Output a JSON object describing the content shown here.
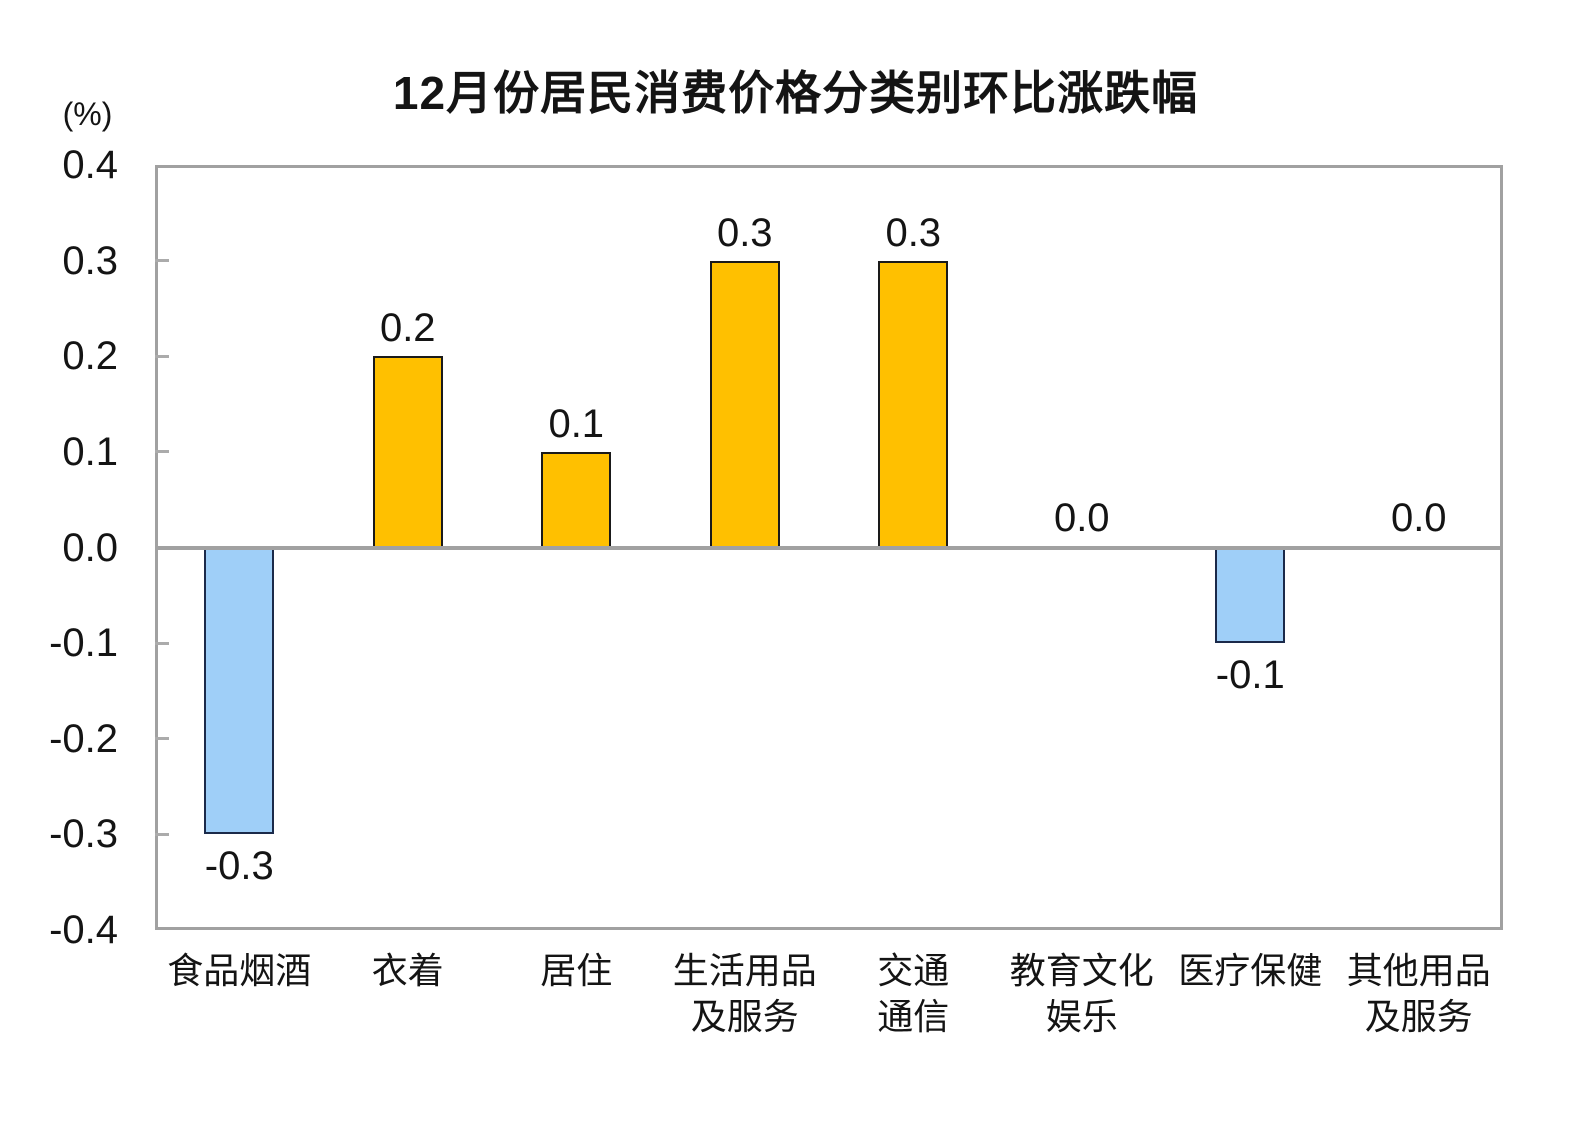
{
  "chart_data": {
    "type": "bar",
    "title": "12月份居民消费价格分类别环比涨跌幅",
    "ylabel_unit": "(%)",
    "categories": [
      "食品烟酒",
      "衣着",
      "居住",
      "生活用品\n及服务",
      "交通\n通信",
      "教育文化\n娱乐",
      "医疗保健",
      "其他用品\n及服务"
    ],
    "values": [
      -0.3,
      0.2,
      0.1,
      0.3,
      0.3,
      0.0,
      -0.1,
      0.0
    ],
    "value_labels": [
      "-0.3",
      "0.2",
      "0.1",
      "0.3",
      "0.3",
      "0.0",
      "-0.1",
      "0.0"
    ],
    "ylim": [
      -0.4,
      0.4
    ],
    "ytick_step": 0.1,
    "ytick_labels": [
      "0.4",
      "0.3",
      "0.2",
      "0.1",
      "0.0",
      "-0.1",
      "-0.2",
      "-0.3",
      "-0.4"
    ],
    "grid": false,
    "legend": "none",
    "colors": {
      "positive_fill": "#FFC000",
      "positive_border": "#1A1A1A",
      "negative_fill": "#9FCFF8",
      "negative_border": "#1B2A4A",
      "axis_frame": "#A1A1A1",
      "tick_mark": "#ABABAB",
      "text": "#000000"
    }
  }
}
